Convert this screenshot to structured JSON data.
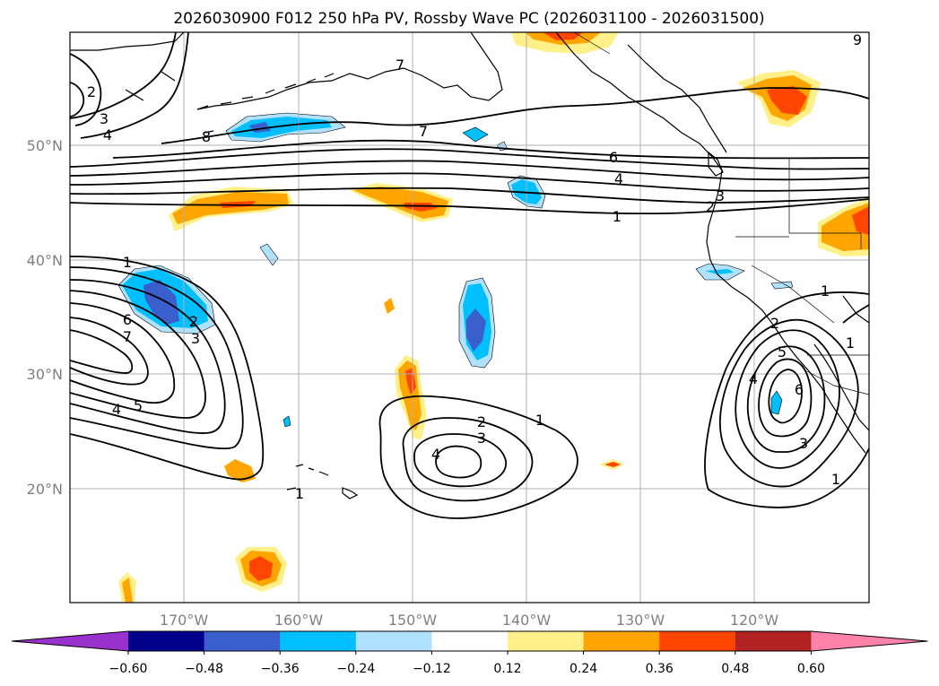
{
  "title": "2026030900 F012 250 hPa PV, Rossby Wave PC (2026031100 - 2026031500)",
  "latitude_labels": [
    "50°N",
    "40°N",
    "30°N",
    "20°N"
  ],
  "longitude_labels": [
    "170°W",
    "160°W",
    "150°W",
    "140°W",
    "130°W",
    "120°W"
  ],
  "contour_labels": [
    "2",
    "3",
    "4",
    "8",
    "7",
    "7",
    "6",
    "4",
    "3",
    "2",
    "1",
    "9",
    "1",
    "6",
    "7",
    "2",
    "3",
    "4",
    "5",
    "1",
    "2",
    "3",
    "4",
    "2",
    "1",
    "5",
    "4",
    "6",
    "3",
    "1",
    "1",
    "1"
  ],
  "colorbar": {
    "ticks": [
      "−0.60",
      "−0.48",
      "−0.36",
      "−0.24",
      "−0.12",
      "0.12",
      "0.24",
      "0.36",
      "0.48",
      "0.60"
    ],
    "colors": [
      "#9932cc",
      "#00008b",
      "#3a5fcd",
      "#00bfff",
      "#b0e2ff",
      "#ffffff",
      "#fff08a",
      "#ffa500",
      "#ff4500",
      "#b22222",
      "#ff82ab"
    ]
  },
  "colors": {
    "pos_light": "#fff08a",
    "pos_mid": "#ffa500",
    "pos_high": "#ff4500",
    "neg_light": "#b0e2ff",
    "neg_mid": "#00bfff",
    "neg_high": "#3a5fcd"
  }
}
